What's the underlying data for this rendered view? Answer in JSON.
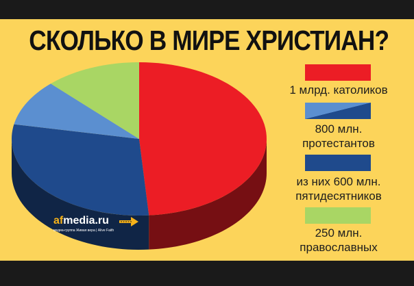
{
  "title": "СКОЛЬКО В МИРЕ ХРИСТИАН?",
  "colors": {
    "catholic": "#ec1d25",
    "protestant_light": "#5b8fd0",
    "pentecostal": "#1f4a8c",
    "orthodox": "#a9d664",
    "background": "#fcd45a",
    "band": "#1a1a1a"
  },
  "chart_data": {
    "type": "pie",
    "unit": "млн",
    "series": [
      {
        "label_lines": [
          "1 млрд. католиков"
        ],
        "value": 1000,
        "color": "#ec1d25"
      },
      {
        "label_lines": [
          "800 млн.",
          "протестантов"
        ],
        "value": 200,
        "color": "#5b8fd0"
      },
      {
        "label_lines": [
          "из них 600 млн.",
          "пятидесятников"
        ],
        "value": 600,
        "color": "#1f4a8c"
      },
      {
        "label_lines": [
          "250 млн.",
          "православных"
        ],
        "value": 250,
        "color": "#a9d664"
      }
    ]
  },
  "logo": {
    "name": "afmedia.ru",
    "subtitle": "медиа-группа Живая вера | Alive Faith"
  }
}
